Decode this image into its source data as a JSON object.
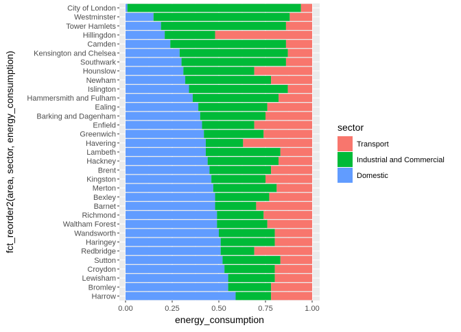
{
  "chart_data": {
    "type": "bar",
    "orientation": "horizontal",
    "stacked": "fill",
    "xlabel": "energy_consumption",
    "ylabel": "fct_reorder2(area, sector, energy_consumption)",
    "xlim": [
      0,
      1
    ],
    "x_ticks": [
      0,
      0.25,
      0.5,
      0.75,
      1
    ],
    "x_tick_labels": [
      "0.00",
      "0.25",
      "0.50",
      "0.75",
      "1.00"
    ],
    "grid": true,
    "legend": {
      "title": "sector",
      "placement": "right"
    },
    "categories": [
      "City of London",
      "Westminster",
      "Tower Hamlets",
      "Hillingdon",
      "Camden",
      "Kensington and Chelsea",
      "Southwark",
      "Hounslow",
      "Newham",
      "Islington",
      "Hammersmith and Fulham",
      "Ealing",
      "Barking and Dagenham",
      "Enfield",
      "Greenwich",
      "Havering",
      "Lambeth",
      "Hackney",
      "Brent",
      "Kingston",
      "Merton",
      "Bexley",
      "Barnet",
      "Richmond",
      "Waltham Forest",
      "Wandsworth",
      "Haringey",
      "Redbridge",
      "Sutton",
      "Croydon",
      "Lewisham",
      "Bromley",
      "Harrow"
    ],
    "series": [
      {
        "name": "Domestic",
        "color": "#619CFF",
        "values": [
          0.01,
          0.15,
          0.19,
          0.21,
          0.24,
          0.29,
          0.3,
          0.31,
          0.32,
          0.34,
          0.36,
          0.39,
          0.4,
          0.41,
          0.42,
          0.43,
          0.43,
          0.44,
          0.45,
          0.46,
          0.47,
          0.48,
          0.48,
          0.49,
          0.49,
          0.5,
          0.51,
          0.51,
          0.52,
          0.53,
          0.55,
          0.55,
          0.59
        ]
      },
      {
        "name": "Industrial and Commercial",
        "color": "#00BA38",
        "values": [
          0.93,
          0.73,
          0.67,
          0.27,
          0.62,
          0.58,
          0.56,
          0.38,
          0.46,
          0.53,
          0.46,
          0.37,
          0.35,
          0.28,
          0.32,
          0.2,
          0.4,
          0.38,
          0.33,
          0.29,
          0.34,
          0.29,
          0.22,
          0.25,
          0.27,
          0.3,
          0.29,
          0.18,
          0.31,
          0.27,
          0.25,
          0.23,
          0.19
        ]
      },
      {
        "name": "Transport",
        "color": "#F8766D",
        "values": [
          0.06,
          0.12,
          0.14,
          0.52,
          0.14,
          0.13,
          0.14,
          0.31,
          0.22,
          0.13,
          0.18,
          0.24,
          0.25,
          0.31,
          0.26,
          0.37,
          0.17,
          0.18,
          0.22,
          0.25,
          0.19,
          0.23,
          0.3,
          0.26,
          0.24,
          0.2,
          0.2,
          0.31,
          0.17,
          0.2,
          0.2,
          0.22,
          0.22
        ]
      }
    ],
    "legend_order": [
      "Transport",
      "Industrial and Commercial",
      "Domestic"
    ]
  }
}
